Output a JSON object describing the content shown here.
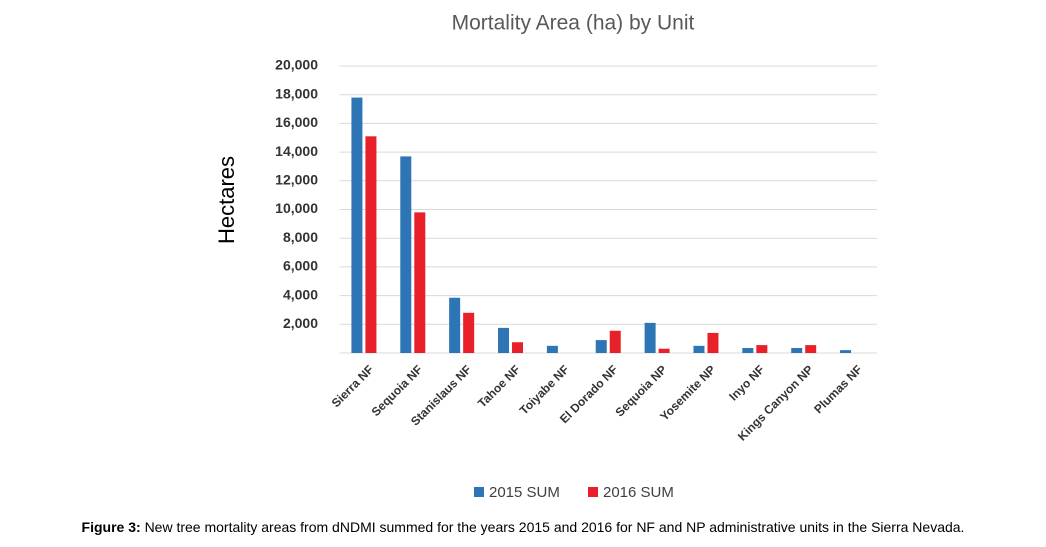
{
  "chart_data": {
    "type": "bar",
    "title": "Mortality Area (ha) by Unit",
    "y_label": "Hectares",
    "categories": [
      "Sierra NF",
      "Sequoia NF",
      "Stanislaus NF",
      "Tahoe NF",
      "Toiyabe NF",
      "El Dorado NF",
      "Sequoia NP",
      "Yosemite NP",
      "Inyo NF",
      "Kings Canyon NP",
      "Plumas NF"
    ],
    "series": [
      {
        "name": "2015 SUM",
        "color": "#2e75b6",
        "values": [
          17800,
          13700,
          3850,
          1750,
          500,
          900,
          2100,
          500,
          350,
          350,
          200
        ]
      },
      {
        "name": "2016 SUM",
        "color": "#e8202a",
        "values": [
          15100,
          9800,
          2800,
          750,
          0,
          1550,
          300,
          1400,
          550,
          550,
          0
        ]
      }
    ],
    "ylim": [
      0,
      20000
    ],
    "yticks": [
      {
        "value": 2000,
        "label": "2,000"
      },
      {
        "value": 4000,
        "label": "4,000"
      },
      {
        "value": 6000,
        "label": "6,000"
      },
      {
        "value": 8000,
        "label": "8,000"
      },
      {
        "value": 10000,
        "label": "10,000"
      },
      {
        "value": 12000,
        "label": "12,000"
      },
      {
        "value": 14000,
        "label": "14,000"
      },
      {
        "value": 16000,
        "label": "16,000"
      },
      {
        "value": 18000,
        "label": "18,000"
      },
      {
        "value": 20000,
        "label": "20,000"
      }
    ],
    "grid": true,
    "legend": "bottom"
  },
  "caption": {
    "label": "Figure 3:",
    "text": "New tree mortality areas from dNDMI summed for the years 2015 and 2016 for NF and NP administrative units in the Sierra Nevada."
  }
}
